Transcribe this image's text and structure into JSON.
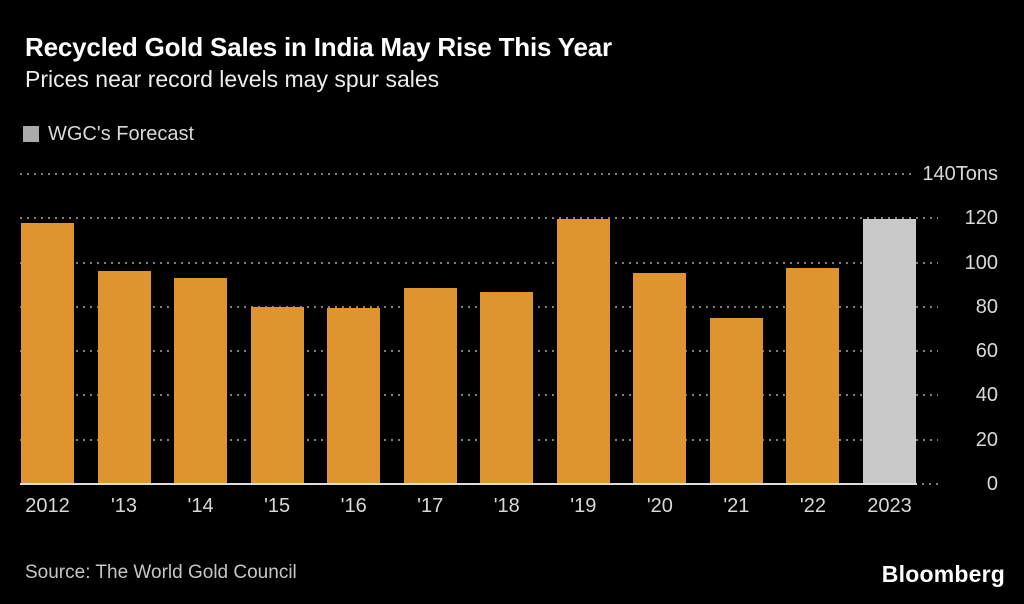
{
  "header": {
    "title": "Recycled Gold Sales in India May Rise This Year",
    "subtitle": "Prices near record levels may spur sales"
  },
  "legend": {
    "label": "WGC's Forecast",
    "swatch_color": "#ababab"
  },
  "chart_data": {
    "type": "bar",
    "title": "Recycled Gold Sales in India May Rise This Year",
    "subtitle": "Prices near record levels may spur sales",
    "unit": "Tons",
    "categories": [
      "2012",
      "'13",
      "'14",
      "'15",
      "'16",
      "'17",
      "'18",
      "'19",
      "'20",
      "'21",
      "'22",
      "2023"
    ],
    "values": [
      118,
      96,
      93,
      80,
      79.5,
      88.5,
      86.5,
      119.5,
      95.5,
      75,
      97.5,
      119.5
    ],
    "forecast_index": 11,
    "ylim": [
      0,
      140
    ],
    "y_ticks": [
      0,
      20,
      40,
      60,
      80,
      100,
      120,
      140
    ],
    "y_tick_labels": [
      "0",
      "20",
      "40",
      "60",
      "80",
      "100",
      "120",
      "140Tons"
    ],
    "grid": "dotted-horizontal",
    "axis_side": "right",
    "legend": [
      "WGC's Forecast"
    ],
    "colors": {
      "actual": "#e0942f",
      "forecast": "#c9c9c9"
    }
  },
  "footer": {
    "source": "Source: The World Gold Council",
    "brand": "Bloomberg"
  }
}
